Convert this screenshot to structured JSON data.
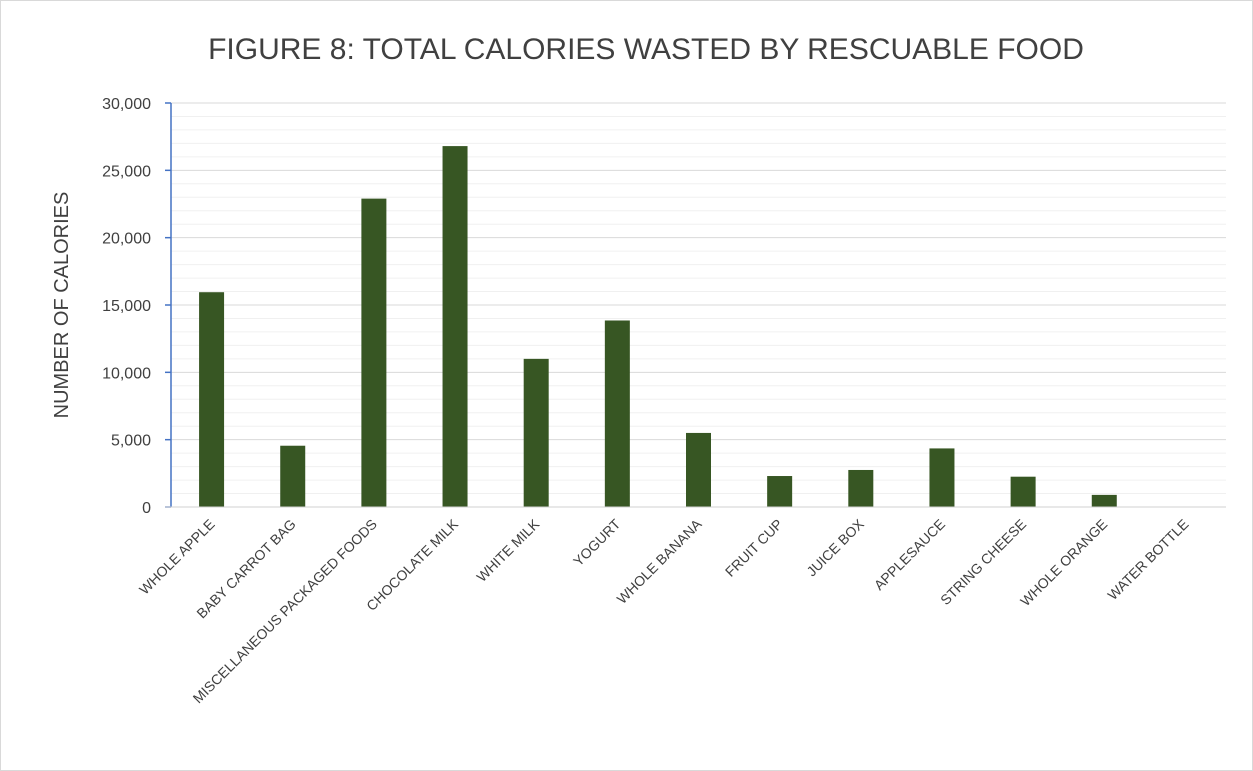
{
  "chart_data": {
    "type": "bar",
    "title": "FIGURE 8: TOTAL CALORIES WASTED BY RESCUABLE FOOD",
    "xlabel": "",
    "ylabel": "NUMBER OF CALORIES",
    "ylim": [
      0,
      30000
    ],
    "yticks": [
      0,
      5000,
      10000,
      15000,
      20000,
      25000,
      30000
    ],
    "ytick_labels": [
      "0",
      "5,000",
      "10,000",
      "15,000",
      "20,000",
      "25,000",
      "30,000"
    ],
    "minor_grid_step": 1000,
    "grid": true,
    "legend": "none",
    "bar_color": "#375623",
    "categories": [
      "WHOLE APPLE",
      "BABY CARROT BAG",
      "MISCELLANEOUS PACKAGED FOODS",
      "CHOCOLATE MILK",
      "WHITE MILK",
      "YOGURT",
      "WHOLE BANANA",
      "FRUIT CUP",
      "JUICE BOX",
      "APPLESAUCE",
      "STRING CHEESE",
      "WHOLE ORANGE",
      "WATER BOTTLE"
    ],
    "values": [
      15950,
      4550,
      22900,
      26800,
      11000,
      13850,
      5500,
      2300,
      2750,
      4350,
      2250,
      900,
      0
    ]
  }
}
